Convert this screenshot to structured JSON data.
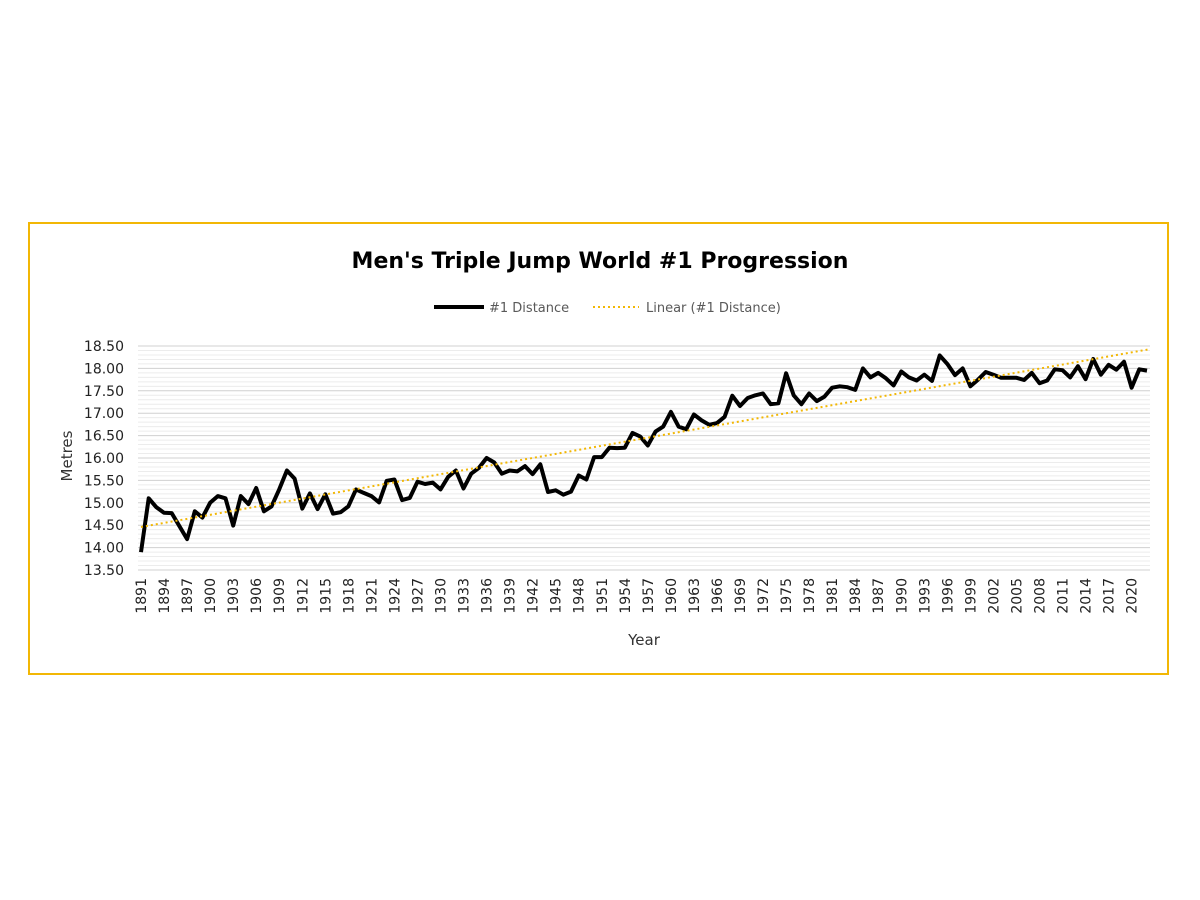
{
  "colors": {
    "frame": "#f2b705",
    "series": "#000000",
    "trend": "#f2b705",
    "grid": "#d9d9d9"
  },
  "chart_data": {
    "type": "line",
    "title": "Men's Triple Jump World #1 Progression",
    "xlabel": "Year",
    "ylabel": "Metres",
    "ylim": [
      13.5,
      18.5
    ],
    "y_ticks": [
      "13.50",
      "14.00",
      "14.50",
      "15.00",
      "15.50",
      "16.00",
      "16.50",
      "17.00",
      "17.50",
      "18.00",
      "18.50"
    ],
    "x_tick_labels": [
      "1891",
      "1894",
      "1897",
      "1900",
      "1903",
      "1906",
      "1909",
      "1912",
      "1915",
      "1918",
      "1921",
      "1924",
      "1927",
      "1930",
      "1933",
      "1936",
      "1939",
      "1942",
      "1945",
      "1948",
      "1951",
      "1954",
      "1957",
      "1960",
      "1963",
      "1966",
      "1969",
      "1972",
      "1975",
      "1978",
      "1981",
      "1984",
      "1987",
      "1990",
      "1993",
      "1996",
      "1999",
      "2002",
      "2005",
      "2008",
      "2011",
      "2014",
      "2017",
      "2020"
    ],
    "grid": true,
    "legend_position": "top",
    "series": [
      {
        "name": "#1 Distance",
        "x_start": 1891,
        "values": [
          13.9,
          15.1,
          14.9,
          14.78,
          14.77,
          14.48,
          14.19,
          14.81,
          14.67,
          15.0,
          15.15,
          15.1,
          14.49,
          15.15,
          14.97,
          15.33,
          14.81,
          14.92,
          15.3,
          15.72,
          15.54,
          14.87,
          15.21,
          14.86,
          15.19,
          14.76,
          14.79,
          14.92,
          15.3,
          15.22,
          15.15,
          15.01,
          15.49,
          15.52,
          15.06,
          15.11,
          15.47,
          15.42,
          15.45,
          15.3,
          15.58,
          15.72,
          15.32,
          15.65,
          15.78,
          16.0,
          15.9,
          15.65,
          15.72,
          15.7,
          15.82,
          15.64,
          15.86,
          15.24,
          15.28,
          15.18,
          15.25,
          15.61,
          15.52,
          16.02,
          16.02,
          16.23,
          16.22,
          16.23,
          16.56,
          16.48,
          16.28,
          16.59,
          16.7,
          17.03,
          16.7,
          16.64,
          16.97,
          16.84,
          16.74,
          16.78,
          16.92,
          17.39,
          17.16,
          17.34,
          17.4,
          17.44,
          17.2,
          17.22,
          17.89,
          17.4,
          17.2,
          17.44,
          17.27,
          17.37,
          17.57,
          17.6,
          17.58,
          17.52,
          18.0,
          17.8,
          17.9,
          17.78,
          17.62,
          17.93,
          17.8,
          17.73,
          17.86,
          17.72,
          18.29,
          18.1,
          17.85,
          18.0,
          17.6,
          17.75,
          17.92,
          17.86,
          17.79,
          17.79,
          17.79,
          17.74,
          17.9,
          17.67,
          17.73,
          17.98,
          17.96,
          17.8,
          18.05,
          17.76,
          18.21,
          17.86,
          18.08,
          17.97,
          18.15,
          17.57,
          17.98,
          17.95
        ]
      },
      {
        "name": "Linear (#1 Distance)",
        "x_start": 1891,
        "x_end": 2022,
        "values": [
          14.46,
          18.43
        ]
      }
    ]
  }
}
